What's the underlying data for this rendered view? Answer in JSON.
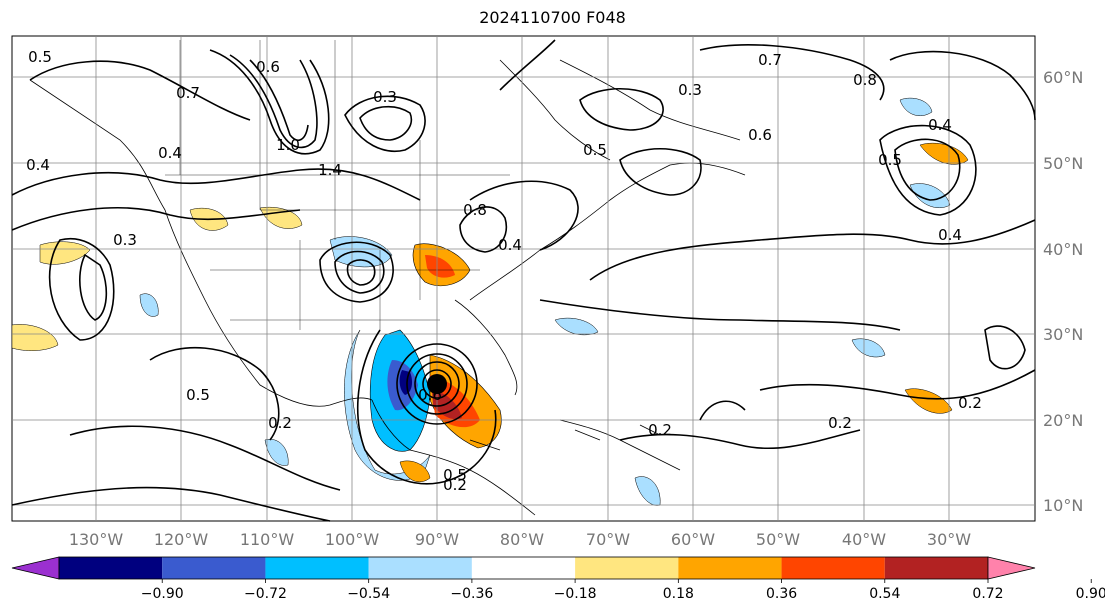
{
  "title": "2024110700 F048",
  "map": {
    "lon_labels": [
      "130°W",
      "120°W",
      "110°W",
      "100°W",
      "90°W",
      "80°W",
      "70°W",
      "60°W",
      "50°W",
      "40°W",
      "30°W"
    ],
    "lat_labels": [
      "60°N",
      "50°N",
      "40°N",
      "30°N",
      "20°N",
      "10°N"
    ],
    "contour_labels": [
      "0.5",
      "0.6",
      "0.7",
      "0.3",
      "1.0",
      "0.4",
      "1.4",
      "0.8",
      "0.4",
      "0.6",
      "0.5",
      "0.4",
      "0.3",
      "0.5",
      "0.2",
      "0.2",
      "0.2",
      "0.2",
      "0.4",
      "0.2",
      "0.5",
      "0.7",
      "0.8",
      "0.6",
      "0.4",
      "0.3",
      "0.5"
    ],
    "storm_marker": "hurricane-center-icon"
  },
  "colorbar": {
    "ticks": [
      "−0.90",
      "−0.72",
      "−0.54",
      "−0.36",
      "−0.18",
      "0.18",
      "0.36",
      "0.54",
      "0.72",
      "0.90"
    ],
    "colors": [
      "#9b30d0",
      "#00007f",
      "#3a5bcf",
      "#00bfff",
      "#aadfff",
      "#ffffff",
      "#ffe680",
      "#ffa500",
      "#ff4500",
      "#b22222",
      "#ff82ab"
    ]
  }
}
